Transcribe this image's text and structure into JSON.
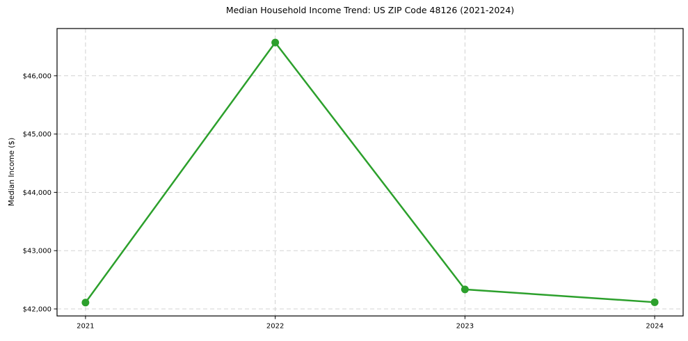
{
  "figure": {
    "title": "Median Household Income Trend: US ZIP Code 48126 (2021-2024)",
    "ylabel": "Median Income ($)"
  },
  "chart_data": {
    "type": "line",
    "title": "Median Household Income Trend: US ZIP Code 48126 (2021-2024)",
    "xlabel": "",
    "ylabel": "Median Income ($)",
    "x": [
      2021,
      2022,
      2023,
      2024
    ],
    "values": [
      42110,
      46570,
      42335,
      42115
    ],
    "series": [
      {
        "name": "Median Household Income",
        "values": [
          42110,
          46570,
          42335,
          42115
        ]
      }
    ],
    "xtick_labels": [
      "2021",
      "2022",
      "2023",
      "2024"
    ],
    "ytick_values": [
      42000,
      43000,
      44000,
      45000,
      46000
    ],
    "ytick_labels": [
      "$42,000",
      "$43,000",
      "$44,000",
      "$45,000",
      "$46,000"
    ],
    "xlim": [
      2020.85,
      2024.15
    ],
    "ylim": [
      41880,
      46810
    ],
    "grid": true,
    "grid_style": "dashed",
    "legend": false,
    "colors": {
      "line": "#2ca02c",
      "marker": "#2ca02c",
      "grid": "#cccccc",
      "axis": "#000000",
      "background": "#ffffff"
    }
  }
}
